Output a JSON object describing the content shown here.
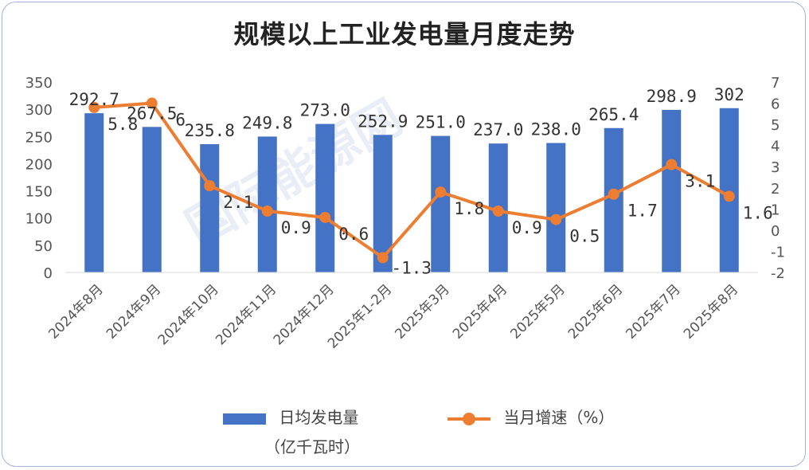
{
  "chart_data": {
    "type": "bar+line",
    "title": "规模以上工业发电量月度走势",
    "categories": [
      "2024年8月",
      "2024年9月",
      "2024年10月",
      "2024年11月",
      "2024年12月",
      "2025年1-2月",
      "2025年3月",
      "2025年4月",
      "2025年5月",
      "2025年6月",
      "2025年7月",
      "2025年8月"
    ],
    "series": [
      {
        "name": "日均发电量（亿千瓦时）",
        "type": "bar",
        "axis": "left",
        "color": "#4472c4",
        "values": [
          292.7,
          267.5,
          235.8,
          249.8,
          273.0,
          252.9,
          251.0,
          237.0,
          238.0,
          265.4,
          298.9,
          302
        ],
        "labels": [
          "292.7",
          "267.5",
          "235.8",
          "249.8",
          "273.0",
          "252.9",
          "251.0",
          "237.0",
          "238.0",
          "265.4",
          "298.9",
          "302"
        ]
      },
      {
        "name": "当月增速（%）",
        "type": "line",
        "axis": "right",
        "color": "#ed7d31",
        "values": [
          5.8,
          6,
          2.1,
          0.9,
          0.6,
          -1.3,
          1.8,
          0.9,
          0.5,
          1.7,
          3.1,
          1.6
        ],
        "labels": [
          "5.8",
          "6",
          "2.1",
          "0.9",
          "0.6",
          "-1.3",
          "1.8",
          "0.9",
          "0.5",
          "1.7",
          "3.1",
          "1.6"
        ]
      }
    ],
    "y_left": {
      "min": 0,
      "max": 350,
      "ticks": [
        "0",
        "50",
        "100",
        "150",
        "200",
        "250",
        "300",
        "350"
      ]
    },
    "y_right": {
      "min": -2,
      "max": 7,
      "ticks": [
        "-2",
        "-1",
        "0",
        "1",
        "2",
        "3",
        "4",
        "5",
        "6",
        "7"
      ]
    },
    "legend_position": "bottom",
    "grid": false
  },
  "legend": {
    "bar_label_line1": "日均发电量",
    "bar_label_line2": "（亿千瓦时）",
    "line_label": "当月增速（%）"
  },
  "watermark": "国际能源网"
}
